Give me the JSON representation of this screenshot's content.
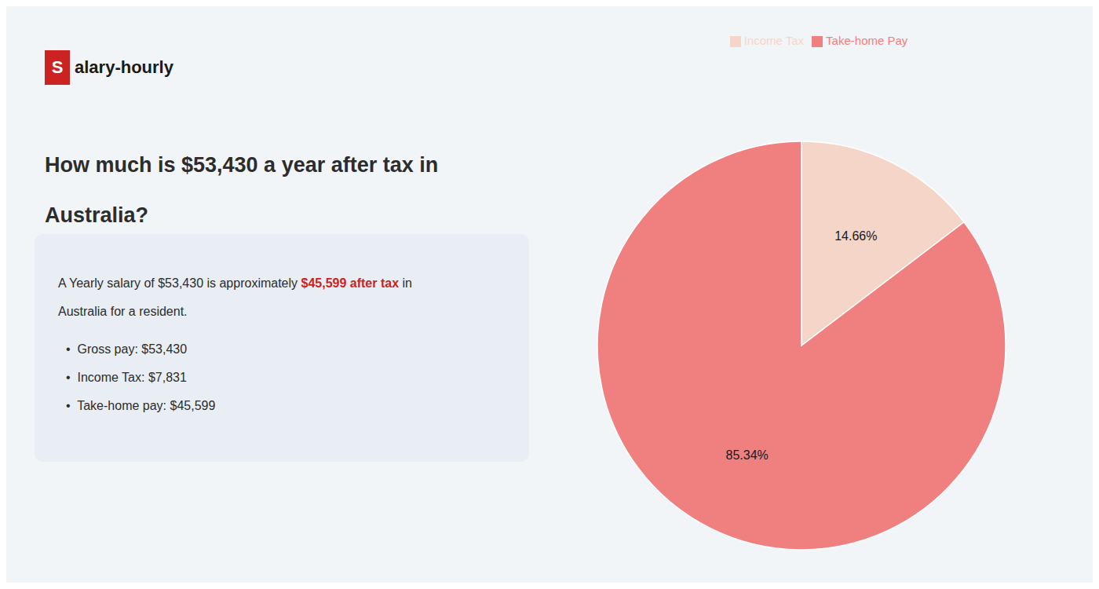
{
  "chart_data": {
    "type": "pie",
    "title": [
      "How much is $53,430 a year after tax in",
      "Australia?"
    ],
    "annotations": [
      "S",
      "alary-hourly",
      "A Yearly salary of $53,430 is approximately ",
      "$45,599 after tax",
      " in",
      "Australia for a resident.",
      "•  Gross pay: $53,430",
      "•  Income Tax: $7,831",
      "•  Take-home pay: $45,599"
    ],
    "categories": [
      "Income Tax",
      "Take-home Pay"
    ],
    "values": [
      14.66,
      85.34
    ],
    "value_labels": [
      "14.66%",
      "85.34%"
    ],
    "colors": [
      "#f5d5c8",
      "#f08080"
    ],
    "data_labels": true,
    "legend": "top"
  }
}
